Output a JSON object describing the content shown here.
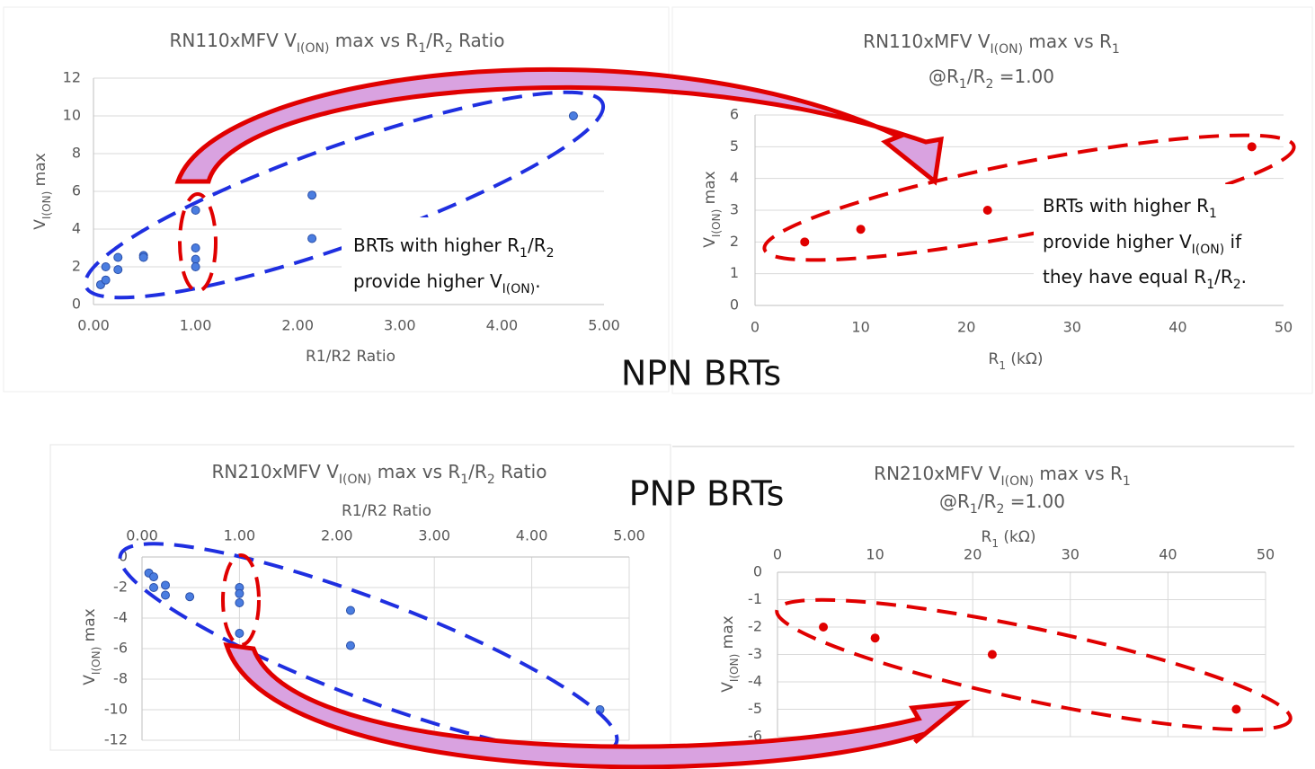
{
  "chart_data": [
    {
      "type": "scatter",
      "title": [
        [
          {
            "text": "RN110xMFV  V"
          },
          {
            "text": "I(ON)",
            "sub": true
          },
          {
            "text": " max  vs  R"
          },
          {
            "text": "1",
            "sub": true
          },
          {
            "text": "/R"
          },
          {
            "text": "2",
            "sub": true
          },
          {
            "text": " Ratio"
          }
        ]
      ],
      "xlabel": [
        {
          "text": "R1/R2 Ratio"
        }
      ],
      "ylabel": [
        {
          "text": "V"
        },
        {
          "text": "I(ON)",
          "sub": true
        },
        {
          "text": "  max"
        }
      ],
      "x": [
        0.07,
        0.12,
        0.12,
        0.24,
        0.24,
        0.49,
        0.49,
        1.0,
        1.0,
        1.0,
        1.0,
        2.14,
        2.14,
        4.7
      ],
      "values": [
        1.05,
        1.3,
        2.0,
        1.85,
        2.5,
        2.6,
        2.5,
        5.0,
        3.0,
        2.4,
        2.0,
        5.8,
        3.5,
        10.0
      ],
      "color": "#4a7de0",
      "xlim": [
        0,
        5
      ],
      "xticks": [
        {
          "value": 0,
          "label": "0.00"
        },
        {
          "value": 1,
          "label": "1.00"
        },
        {
          "value": 2,
          "label": "2.00"
        },
        {
          "value": 3,
          "label": "3.00"
        },
        {
          "value": 4,
          "label": "4.00"
        },
        {
          "value": 5,
          "label": "5.00"
        }
      ],
      "ylim": [
        0,
        12
      ],
      "yticks": [
        0,
        2,
        4,
        6,
        8,
        10,
        12
      ],
      "grid": true,
      "xaxis_position": "bottom",
      "annotation": [
        [
          {
            "text": "BRTs with higher R"
          },
          {
            "text": "1",
            "sub": true
          },
          {
            "text": "/R"
          },
          {
            "text": "2",
            "sub": true
          }
        ],
        [
          {
            "text": "provide higher V"
          },
          {
            "text": "I(ON)",
            "sub": true
          },
          {
            "text": "."
          }
        ]
      ]
    },
    {
      "type": "scatter",
      "title": [
        [
          {
            "text": "RN110xMFV   V"
          },
          {
            "text": "I(ON)",
            "sub": true
          },
          {
            "text": " max  vs  R"
          },
          {
            "text": "1",
            "sub": true
          }
        ],
        [
          {
            "text": "@R"
          },
          {
            "text": "1",
            "sub": true
          },
          {
            "text": "/R"
          },
          {
            "text": "2",
            "sub": true
          },
          {
            "text": " =1.00"
          }
        ]
      ],
      "xlabel": [
        {
          "text": "R"
        },
        {
          "text": "1",
          "sub": true
        },
        {
          "text": "  (kΩ)"
        }
      ],
      "ylabel": [
        {
          "text": "V"
        },
        {
          "text": "I(ON)",
          "sub": true
        },
        {
          "text": "  max"
        }
      ],
      "x": [
        4.7,
        10,
        22,
        47
      ],
      "values": [
        2,
        2.4,
        3,
        5
      ],
      "color": "#e00000",
      "xlim": [
        0,
        50
      ],
      "xticks": [
        0,
        10,
        20,
        30,
        40,
        50
      ],
      "ylim": [
        0,
        6
      ],
      "yticks": [
        0,
        1,
        2,
        3,
        4,
        5,
        6
      ],
      "grid": true,
      "xaxis_position": "bottom",
      "annotation": [
        [
          {
            "text": "BRTs with higher R"
          },
          {
            "text": "1",
            "sub": true
          }
        ],
        [
          {
            "text": "provide higher V"
          },
          {
            "text": "I(ON)",
            "sub": true
          },
          {
            "text": " if"
          }
        ],
        [
          {
            "text": "they have equal R"
          },
          {
            "text": "1",
            "sub": true
          },
          {
            "text": "/R"
          },
          {
            "text": "2",
            "sub": true
          },
          {
            "text": "."
          }
        ]
      ]
    },
    {
      "type": "scatter",
      "title": [
        [
          {
            "text": "RN210xMFV   V"
          },
          {
            "text": "I(ON)",
            "sub": true
          },
          {
            "text": " max  vs  R"
          },
          {
            "text": "1",
            "sub": true
          },
          {
            "text": "/R"
          },
          {
            "text": "2",
            "sub": true
          },
          {
            "text": " Ratio"
          }
        ]
      ],
      "xlabel": [
        {
          "text": "R1/R2 Ratio"
        }
      ],
      "ylabel": [
        {
          "text": "V"
        },
        {
          "text": "I(ON)",
          "sub": true
        },
        {
          "text": "  max"
        }
      ],
      "x": [
        0.07,
        0.12,
        0.12,
        0.24,
        0.24,
        0.49,
        1.0,
        1.0,
        1.0,
        1.0,
        2.14,
        2.14,
        4.7
      ],
      "values": [
        -1.05,
        -1.3,
        -2.0,
        -1.85,
        -2.5,
        -2.6,
        -2.0,
        -2.4,
        -3.0,
        -5.0,
        -3.5,
        -5.8,
        -10.0
      ],
      "color": "#4a7de0",
      "xlim": [
        0,
        5
      ],
      "xticks": [
        {
          "value": 0,
          "label": "0.00"
        },
        {
          "value": 1,
          "label": "1.00"
        },
        {
          "value": 2,
          "label": "2.00"
        },
        {
          "value": 3,
          "label": "3.00"
        },
        {
          "value": 4,
          "label": "4.00"
        },
        {
          "value": 5,
          "label": "5.00"
        }
      ],
      "ylim": [
        -12,
        0
      ],
      "yticks": [
        -12,
        -10,
        -8,
        -6,
        -4,
        -2,
        0
      ],
      "grid": true,
      "xaxis_position": "top"
    },
    {
      "type": "scatter",
      "title": [
        [
          {
            "text": "RN210xMFV   V"
          },
          {
            "text": "I(ON)",
            "sub": true
          },
          {
            "text": " max  vs  R"
          },
          {
            "text": "1",
            "sub": true
          }
        ],
        [
          {
            "text": "@R"
          },
          {
            "text": "1",
            "sub": true
          },
          {
            "text": "/R"
          },
          {
            "text": "2",
            "sub": true
          },
          {
            "text": " =1.00"
          }
        ]
      ],
      "xlabel": [
        {
          "text": "R"
        },
        {
          "text": "1",
          "sub": true
        },
        {
          "text": "  (kΩ)"
        }
      ],
      "ylabel": [
        {
          "text": "V"
        },
        {
          "text": "I(ON)",
          "sub": true
        },
        {
          "text": "  max"
        }
      ],
      "x": [
        4.7,
        10,
        22,
        47
      ],
      "values": [
        -2,
        -2.4,
        -3,
        -5
      ],
      "color": "#e00000",
      "xlim": [
        0,
        50
      ],
      "xticks": [
        0,
        10,
        20,
        30,
        40,
        50
      ],
      "ylim": [
        -6,
        0
      ],
      "yticks": [
        -6,
        -5,
        -4,
        -3,
        -2,
        -1,
        0
      ],
      "grid": true,
      "xaxis_position": "top"
    }
  ],
  "labels": [
    "NPN BRTs",
    "PNP BRTs"
  ]
}
